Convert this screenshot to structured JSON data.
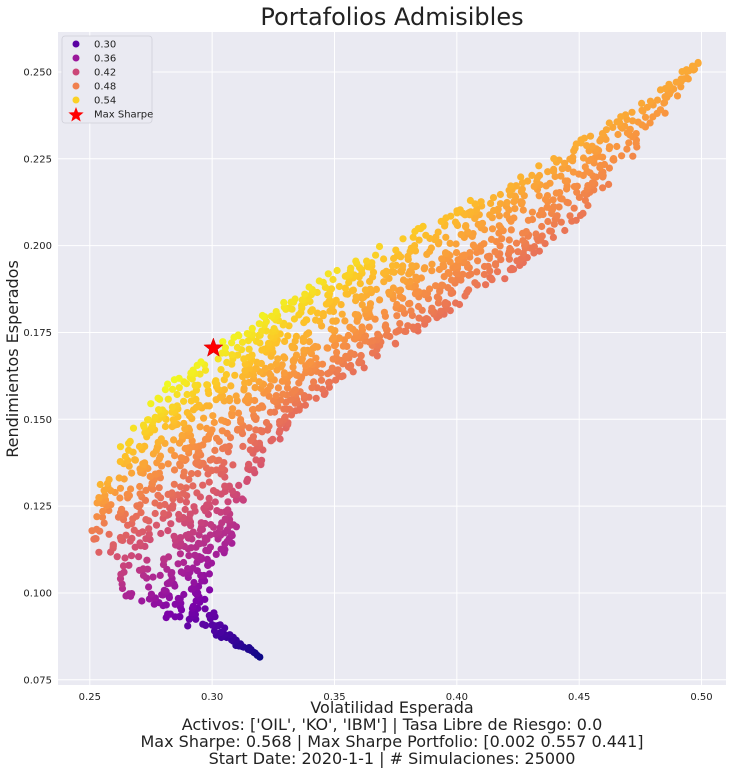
{
  "chart_data": {
    "type": "scatter",
    "title": "Portafolios Admisibles",
    "xlabel": "Volatilidad Esperada",
    "ylabel": "Rendimientos Esperados",
    "xlim": [
      0.237,
      0.51
    ],
    "ylim": [
      0.0735,
      0.2615
    ],
    "xticks": [
      "0.25",
      "0.30",
      "0.35",
      "0.40",
      "0.45",
      "0.50"
    ],
    "yticks": [
      "0.075",
      "0.100",
      "0.125",
      "0.150",
      "0.175",
      "0.200",
      "0.225",
      "0.250"
    ],
    "grid": true,
    "legend_position": "top-left",
    "colormap": "plasma",
    "sharpe_range": [
      0.255,
      0.568
    ],
    "legend": [
      {
        "label": "0.30",
        "color": "#5a02a3"
      },
      {
        "label": "0.36",
        "color": "#9a179b"
      },
      {
        "label": "0.42",
        "color": "#cb4778"
      },
      {
        "label": "0.48",
        "color": "#f0804f"
      },
      {
        "label": "0.54",
        "color": "#fbd124"
      },
      {
        "label": "Max Sharpe",
        "color": "#ff0000",
        "marker": "star"
      }
    ],
    "envelope": {
      "upper": [
        [
          0.319,
          0.082
        ],
        [
          0.305,
          0.0865
        ],
        [
          0.29,
          0.091
        ],
        [
          0.275,
          0.095
        ],
        [
          0.265,
          0.099
        ],
        [
          0.257,
          0.105
        ],
        [
          0.252,
          0.112
        ],
        [
          0.2505,
          0.118
        ],
        [
          0.252,
          0.127
        ],
        [
          0.257,
          0.136
        ],
        [
          0.265,
          0.146
        ],
        [
          0.276,
          0.156
        ],
        [
          0.29,
          0.165
        ],
        [
          0.3005,
          0.1705
        ],
        [
          0.32,
          0.18
        ],
        [
          0.35,
          0.193
        ],
        [
          0.38,
          0.204
        ],
        [
          0.41,
          0.214
        ],
        [
          0.44,
          0.226
        ],
        [
          0.47,
          0.239
        ],
        [
          0.498,
          0.2525
        ]
      ],
      "lower": [
        [
          0.319,
          0.082
        ],
        [
          0.315,
          0.088
        ],
        [
          0.31,
          0.094
        ],
        [
          0.306,
          0.1
        ],
        [
          0.306,
          0.108
        ],
        [
          0.309,
          0.116
        ],
        [
          0.312,
          0.124
        ],
        [
          0.316,
          0.132
        ],
        [
          0.322,
          0.14
        ],
        [
          0.33,
          0.147
        ],
        [
          0.34,
          0.154
        ],
        [
          0.355,
          0.162
        ],
        [
          0.37,
          0.169
        ],
        [
          0.39,
          0.177
        ],
        [
          0.41,
          0.186
        ],
        [
          0.43,
          0.196
        ],
        [
          0.45,
          0.208
        ],
        [
          0.47,
          0.223
        ],
        [
          0.485,
          0.237
        ],
        [
          0.498,
          0.2525
        ]
      ]
    },
    "max_sharpe_point": {
      "x": 0.3005,
      "y": 0.1705,
      "sharpe": 0.568
    },
    "footer": [
      "Volatilidad Esperada",
      "Activos: ['OIL', 'KO', 'IBM'] | Tasa Libre de Riesgo: 0.0",
      "Max Sharpe: 0.568 | Max Sharpe Portfolio: [0.002 0.557 0.441]",
      "Start Date: 2020-1-1 | # Simulaciones: 25000"
    ],
    "colors": {
      "plot_bg": "#eaeaf2",
      "grid": "#ffffff",
      "star": "#ff0000"
    }
  }
}
